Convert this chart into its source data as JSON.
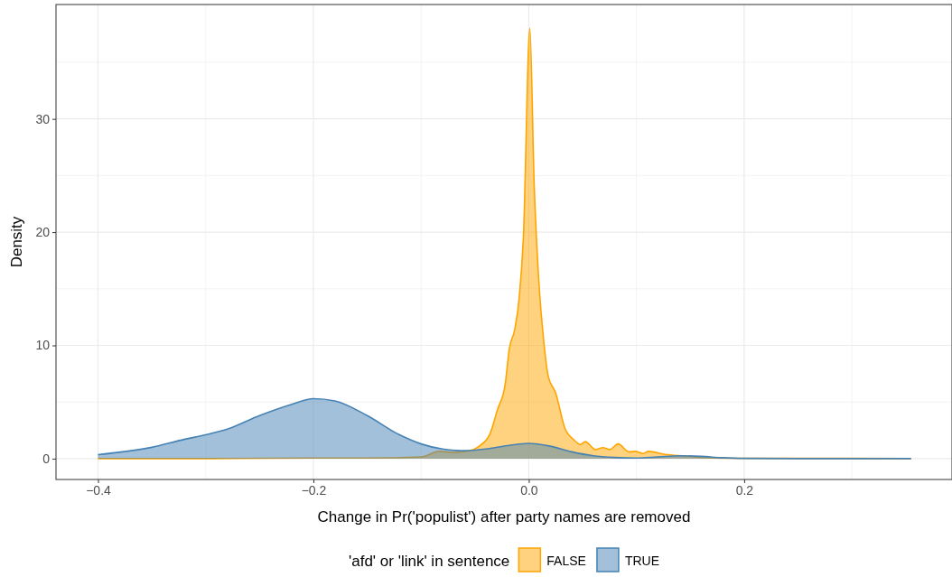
{
  "chart_data": {
    "type": "area",
    "xlabel": "Change in Pr('populist') after party names are removed",
    "ylabel": "Density",
    "legend_title": "'afd' or 'link' in sentence",
    "legend": "bottom",
    "grid": true,
    "xlim": [
      -0.439,
      0.393
    ],
    "ylim": [
      -1.84,
      40.1
    ],
    "xticks": [
      {
        "value": -0.4,
        "label": "−0.4"
      },
      {
        "value": -0.2,
        "label": "−0.2"
      },
      {
        "value": 0,
        "label": "0.0"
      },
      {
        "value": 0.2,
        "label": "0.2"
      }
    ],
    "yticks": [
      0,
      10,
      20,
      30
    ],
    "series": [
      {
        "name": "FALSE",
        "color": "#ffa500",
        "x": [
          -0.4,
          -0.3,
          -0.2,
          -0.15,
          -0.1,
          -0.083,
          -0.07,
          -0.055,
          -0.046,
          -0.036,
          -0.029,
          -0.022,
          -0.018,
          -0.013,
          -0.009,
          -0.005,
          0.001,
          0.005,
          0.009,
          0.014,
          0.018,
          0.025,
          0.0335,
          0.042,
          0.048,
          0.0525,
          0.062,
          0.069,
          0.075,
          0.083,
          0.093,
          0.099,
          0.106,
          0.111,
          0.127,
          0.144,
          0.172,
          0.2,
          0.25,
          0.3,
          0.355
        ],
        "values": [
          0,
          0,
          0.05,
          0.05,
          0.15,
          0.65,
          0.55,
          0.7,
          1.1,
          2.2,
          4.35,
          6.5,
          9.75,
          11.4,
          14.1,
          19.5,
          38,
          24.3,
          16.2,
          10.3,
          7.3,
          5.8,
          2.7,
          1.65,
          1.25,
          1.5,
          0.8,
          0.97,
          0.8,
          1.3,
          0.6,
          0.64,
          0.45,
          0.64,
          0.37,
          0.24,
          0.05,
          0.03,
          0.02,
          0.02,
          0
        ]
      },
      {
        "name": "TRUE",
        "color": "#4682b4",
        "x": [
          -0.4,
          -0.35,
          -0.32,
          -0.3,
          -0.28,
          -0.25,
          -0.22,
          -0.2,
          -0.18,
          -0.15,
          -0.12,
          -0.1,
          -0.08,
          -0.06,
          -0.04,
          -0.02,
          0,
          0.02,
          0.04,
          0.06,
          0.08,
          0.1,
          0.12,
          0.14,
          0.16,
          0.18,
          0.2,
          0.25,
          0.3,
          0.355
        ],
        "values": [
          0.35,
          1.0,
          1.7,
          2.1,
          2.6,
          3.8,
          4.8,
          5.3,
          5.1,
          3.8,
          2.1,
          1.3,
          0.85,
          0.7,
          0.85,
          1.15,
          1.35,
          1.1,
          0.6,
          0.25,
          0.1,
          0.05,
          0.15,
          0.25,
          0.2,
          0.08,
          0.02,
          0,
          0,
          0
        ]
      }
    ]
  }
}
